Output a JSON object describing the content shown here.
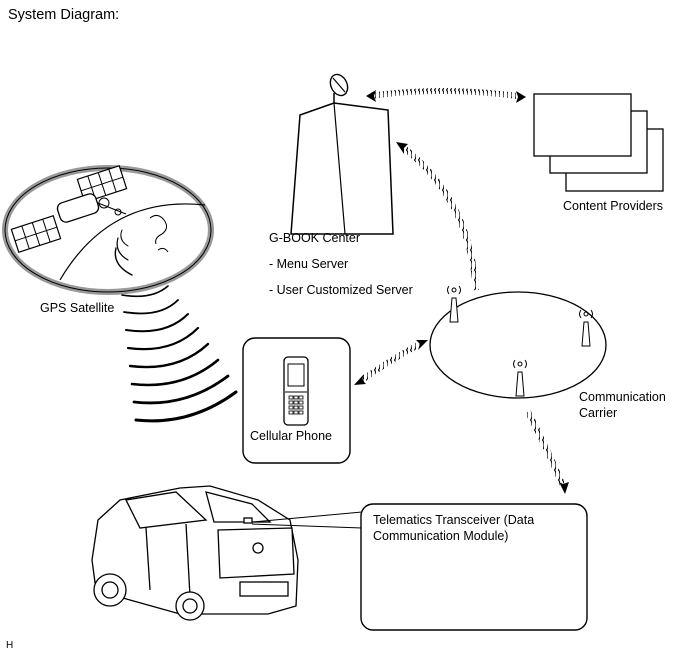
{
  "title": "System Diagram:",
  "labels": {
    "gbook_center": "G-BOOK Center",
    "menu_server": "- Menu Server",
    "user_server": "- User Customized Server",
    "content_providers": "Content Providers",
    "gps_satellite": "GPS Satellite",
    "cellular_phone": "Cellular Phone",
    "comm_line1": "Communication",
    "comm_line2": "Carrier",
    "transceiver": "Telematics Transceiver (Data Communication Module)",
    "corner_mark": "H"
  }
}
